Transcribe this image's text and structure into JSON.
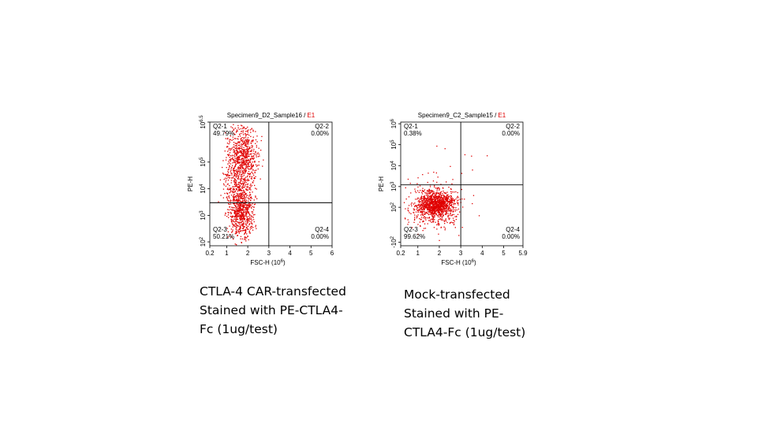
{
  "chart_data": [
    {
      "type": "scatter",
      "title": "Specimen9_D2_Sample16 /",
      "title_gate": "E1",
      "xlabel": "FSC-H (10",
      "xlabel_exp": "6",
      "xlabel_end": ")",
      "ylabel": "PE-H",
      "xlim": [
        0.2,
        6
      ],
      "xticks": [
        0.2,
        1,
        2,
        3,
        4,
        5,
        6
      ],
      "yscale": "biexponential",
      "ylim": [
        70,
        3162278
      ],
      "yticks": [
        {
          "value": 100,
          "label": "10",
          "exponent": "2"
        },
        {
          "value": 1000,
          "label": "10",
          "exponent": "3"
        },
        {
          "value": 10000,
          "label": "10",
          "exponent": "4"
        },
        {
          "value": 100000,
          "label": "10",
          "exponent": "5"
        },
        {
          "value": 3162278,
          "label": "10",
          "exponent": "6.5"
        }
      ],
      "gate": {
        "x": 3,
        "y": 3000
      },
      "color": "#e00000",
      "quadrants": [
        {
          "name": "Q2-1",
          "value": 49.79,
          "value_label": "49.79%"
        },
        {
          "name": "Q2-2",
          "value": 0.0,
          "value_label": "0.00%"
        },
        {
          "name": "Q2-3",
          "value": 50.21,
          "value_label": "50.21%"
        },
        {
          "name": "Q2-4",
          "value": 0.0,
          "value_label": "0.00%"
        }
      ],
      "caption": [
        "CTLA-4 CAR-transfected",
        "Stained with PE-CTLA4-",
        "Fc (1ug/test)"
      ]
    },
    {
      "type": "scatter",
      "title": "Specimen9_C2_Sample15 /",
      "title_gate": "E1",
      "xlabel": "FSC-H (10",
      "xlabel_exp": "6",
      "xlabel_end": ")",
      "ylabel": "PE-H",
      "xlim": [
        0.2,
        5.9
      ],
      "xticks": [
        0.2,
        1,
        2,
        3,
        4,
        5,
        5.9
      ],
      "yscale": "biexponential",
      "ylim": [
        -150,
        1200000
      ],
      "yticks": [
        {
          "value": -100,
          "label": "-10",
          "exponent": "2"
        },
        {
          "value": 100,
          "label": "10",
          "exponent": "2"
        },
        {
          "value": 1000,
          "label": "10",
          "exponent": "3"
        },
        {
          "value": 10000,
          "label": "10",
          "exponent": "4"
        },
        {
          "value": 100000,
          "label": "10",
          "exponent": "5"
        },
        {
          "value": 1000000,
          "label": "10",
          "exponent": "6"
        }
      ],
      "gate": {
        "x": 3,
        "y": 1200
      },
      "color": "#e00000",
      "quadrants": [
        {
          "name": "Q2-1",
          "value": 0.38,
          "value_label": "0.38%"
        },
        {
          "name": "Q2-2",
          "value": 0.0,
          "value_label": "0.00%"
        },
        {
          "name": "Q2-3",
          "value": 99.62,
          "value_label": "99.62%"
        },
        {
          "name": "Q2-4",
          "value": 0.0,
          "value_label": "0.00%"
        }
      ],
      "caption": [
        "Mock-transfected",
        "Stained with PE-",
        "CTLA4-Fc (1ug/test)"
      ]
    }
  ]
}
